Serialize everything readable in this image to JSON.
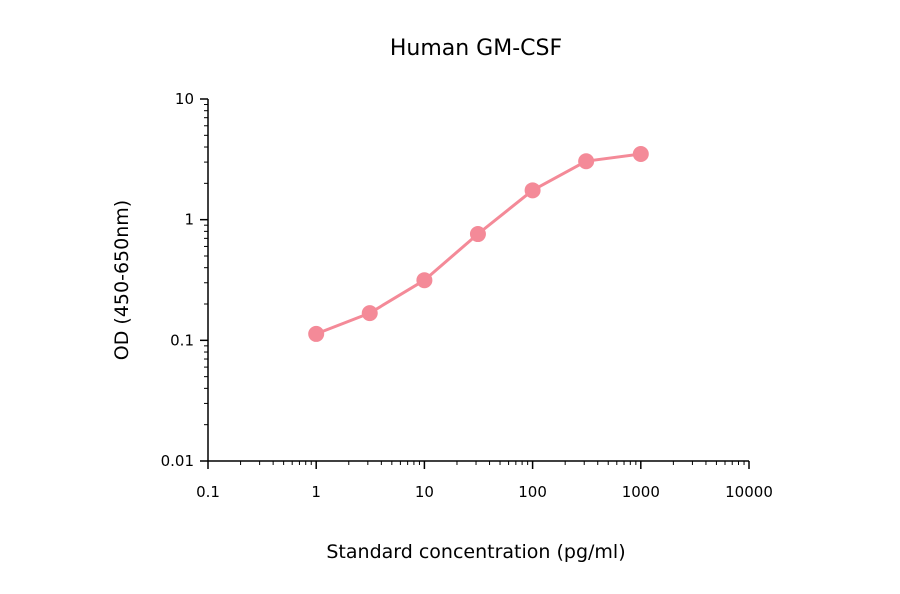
{
  "chart_data": {
    "type": "line",
    "title": "Human GM-CSF",
    "xlabel": "Standard concentration (pg/ml)",
    "ylabel": "OD (450-650nm)",
    "x_scale": "log",
    "y_scale": "log",
    "xlim": [
      0.1,
      10000
    ],
    "ylim": [
      0.01,
      10
    ],
    "x_ticks": [
      "0.1",
      "1",
      "10",
      "100",
      "1000",
      "10000"
    ],
    "y_ticks": [
      "0.01",
      "0.1",
      "1",
      "10"
    ],
    "grid": false,
    "series": [
      {
        "x": [
          1,
          3.125,
          10,
          31.25,
          100,
          312.5,
          1000
        ],
        "y": [
          0.113,
          0.168,
          0.315,
          0.76,
          1.75,
          3.05,
          3.5
        ],
        "color": "#f48a98"
      }
    ]
  }
}
